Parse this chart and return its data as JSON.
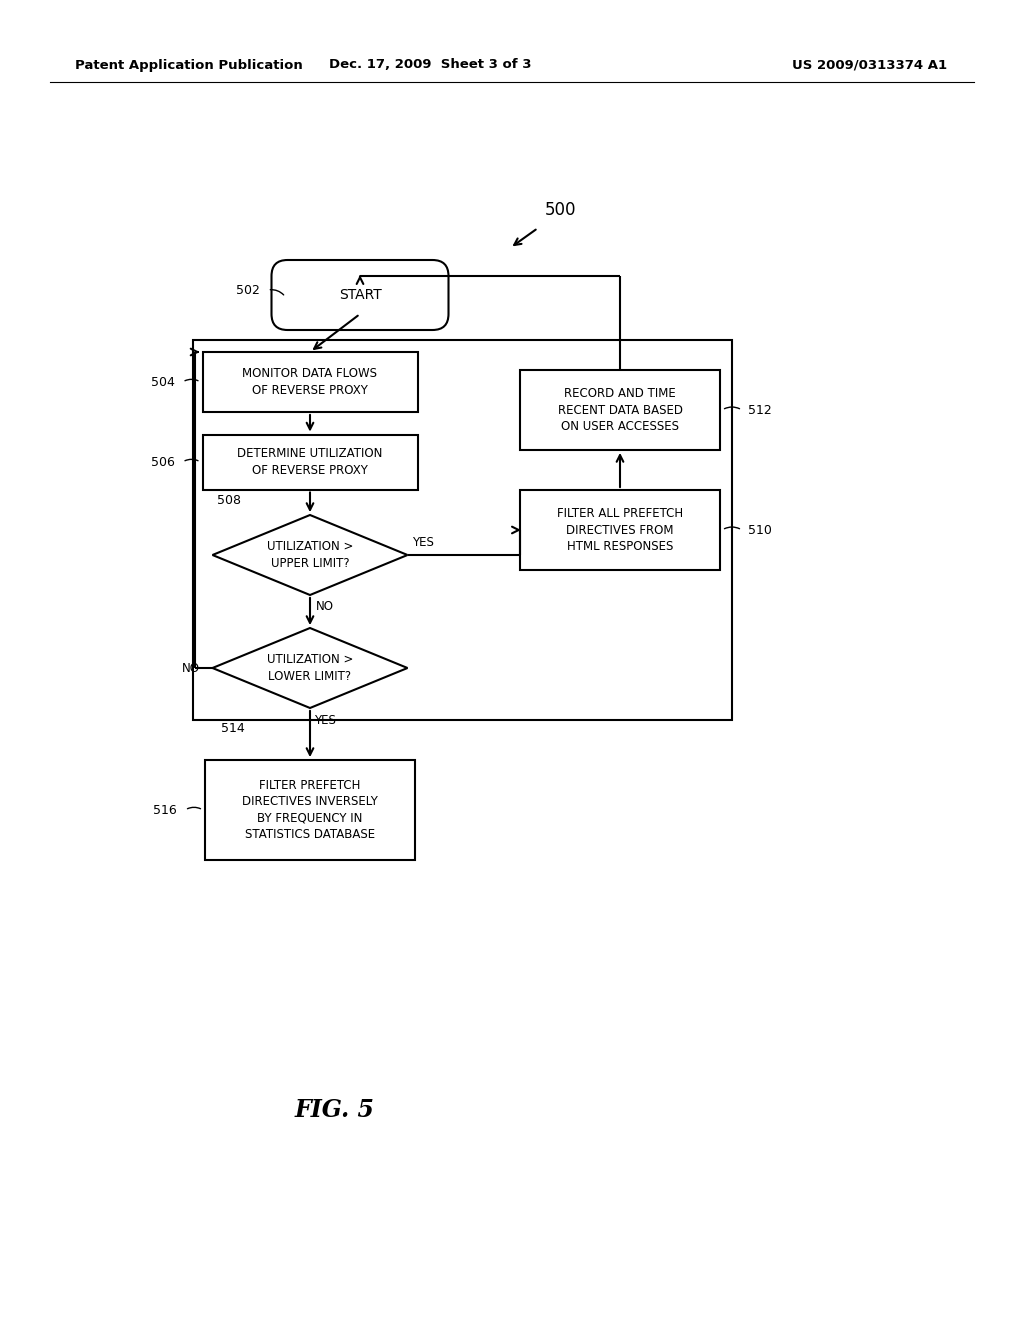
{
  "background_color": "#ffffff",
  "header_left": "Patent Application Publication",
  "header_center": "Dec. 17, 2009  Sheet 3 of 3",
  "header_right": "US 2009/0313374 A1",
  "figure_label": "FIG. 5",
  "diagram_number": "500",
  "text_color": "#000000",
  "line_color": "#000000",
  "line_width": 1.5,
  "font_size_header": 9.5,
  "font_size_node": 8.0,
  "font_size_label": 8.5,
  "font_size_ref": 9,
  "font_size_fig": 17
}
